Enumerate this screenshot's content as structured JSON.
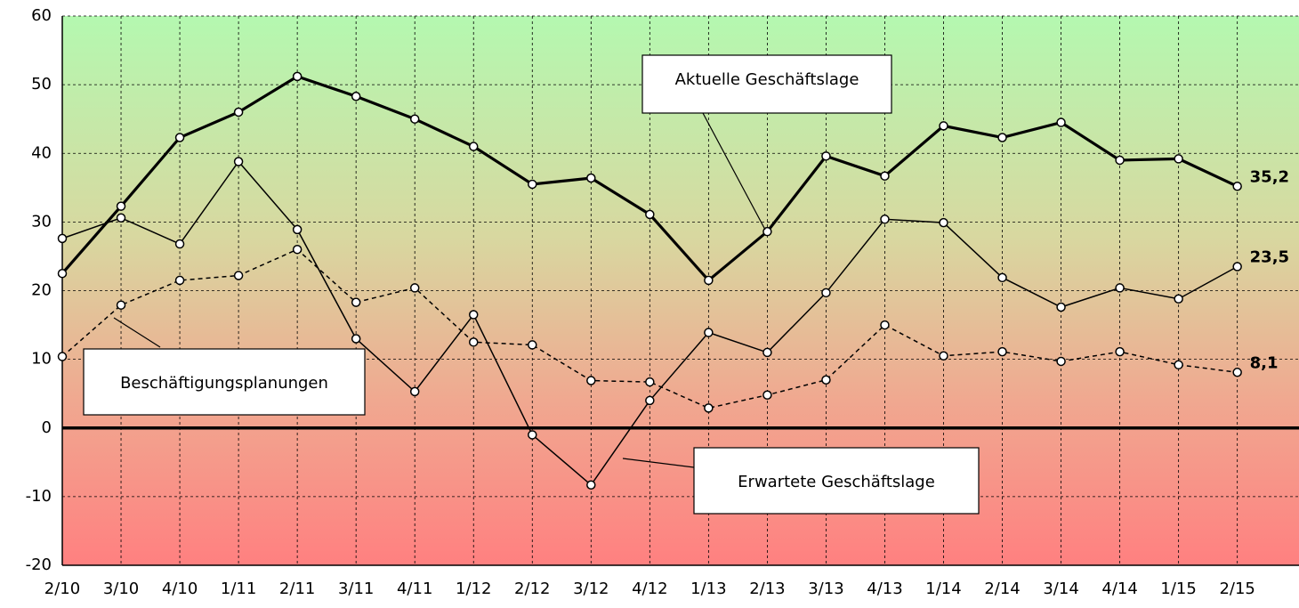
{
  "chart_data": {
    "type": "line",
    "categories": [
      "2/10",
      "3/10",
      "4/10",
      "1/11",
      "2/11",
      "3/11",
      "4/11",
      "1/12",
      "2/12",
      "3/12",
      "4/12",
      "1/13",
      "2/13",
      "3/13",
      "4/13",
      "1/14",
      "2/14",
      "3/14",
      "4/14",
      "1/15",
      "2/15"
    ],
    "series": [
      {
        "name": "Aktuelle Geschäftslage",
        "color": "#000000",
        "width": 3.2,
        "dashed": false,
        "values": [
          22.5,
          32.3,
          42.3,
          46,
          51.2,
          48.3,
          45,
          41,
          35.5,
          36.4,
          31.1,
          21.5,
          28.6,
          39.6,
          36.7,
          44,
          42.3,
          44.5,
          39,
          39.2,
          35.2
        ],
        "value_labels": [
          null,
          null,
          null,
          null,
          null,
          null,
          null,
          null,
          null,
          null,
          null,
          null,
          null,
          null,
          null,
          null,
          null,
          null,
          null,
          null,
          "35,2"
        ]
      },
      {
        "name": "Erwartete Geschäftslage",
        "color": "#000000",
        "width": 1.5,
        "dashed": false,
        "values": [
          27.6,
          30.6,
          26.8,
          38.8,
          28.9,
          13,
          5.3,
          16.5,
          -1,
          -8.3,
          4,
          13.9,
          11,
          19.7,
          30.4,
          29.9,
          21.9,
          17.6,
          20.4,
          18.8,
          23.5
        ],
        "value_labels": [
          null,
          null,
          null,
          null,
          null,
          null,
          null,
          null,
          null,
          null,
          null,
          null,
          null,
          null,
          null,
          null,
          null,
          null,
          null,
          null,
          "23,5"
        ]
      },
      {
        "name": "Beschäftigungsplanungen",
        "color": "#000000",
        "width": 1.5,
        "dashed": true,
        "values": [
          10.4,
          17.9,
          21.5,
          22.2,
          26,
          18.3,
          20.4,
          12.5,
          12.1,
          6.9,
          6.7,
          2.9,
          4.8,
          7,
          15,
          10.5,
          11.1,
          9.7,
          11.1,
          9.2,
          8.1
        ],
        "value_labels": [
          null,
          null,
          null,
          null,
          null,
          null,
          null,
          null,
          null,
          null,
          null,
          null,
          null,
          null,
          null,
          null,
          null,
          null,
          null,
          null,
          "8,1"
        ]
      }
    ],
    "ylim": [
      -20,
      60
    ],
    "yticks": [
      -20,
      -10,
      0,
      10,
      20,
      30,
      40,
      50,
      60
    ],
    "grid": true
  }
}
